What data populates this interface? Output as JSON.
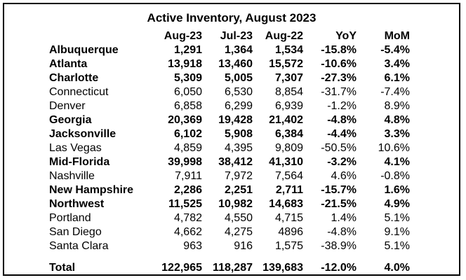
{
  "chart_data": {
    "type": "table",
    "title": "Active Inventory, August 2023",
    "columns": [
      "Aug-23",
      "Jul-23",
      "Aug-22",
      "YoY",
      "MoM"
    ],
    "rows": [
      {
        "name": "Albuquerque",
        "bold": true,
        "values": [
          "1,291",
          "1,364",
          "1,534",
          "-15.8%",
          "-5.4%"
        ]
      },
      {
        "name": "Atlanta",
        "bold": true,
        "values": [
          "13,918",
          "13,460",
          "15,572",
          "-10.6%",
          "3.4%"
        ]
      },
      {
        "name": "Charlotte",
        "bold": true,
        "values": [
          "5,309",
          "5,005",
          "7,307",
          "-27.3%",
          "6.1%"
        ]
      },
      {
        "name": "Connecticut",
        "bold": false,
        "values": [
          "6,050",
          "6,530",
          "8,854",
          "-31.7%",
          "-7.4%"
        ]
      },
      {
        "name": "Denver",
        "bold": false,
        "values": [
          "6,858",
          "6,299",
          "6,939",
          "-1.2%",
          "8.9%"
        ]
      },
      {
        "name": "Georgia",
        "bold": true,
        "values": [
          "20,369",
          "19,428",
          "21,402",
          "-4.8%",
          "4.8%"
        ]
      },
      {
        "name": "Jacksonville",
        "bold": true,
        "values": [
          "6,102",
          "5,908",
          "6,384",
          "-4.4%",
          "3.3%"
        ]
      },
      {
        "name": "Las Vegas",
        "bold": false,
        "values": [
          "4,859",
          "4,395",
          "9,809",
          "-50.5%",
          "10.6%"
        ]
      },
      {
        "name": "Mid-Florida",
        "bold": true,
        "values": [
          "39,998",
          "38,412",
          "41,310",
          "-3.2%",
          "4.1%"
        ]
      },
      {
        "name": "Nashville",
        "bold": false,
        "values": [
          "7,911",
          "7,972",
          "7,564",
          "4.6%",
          "-0.8%"
        ]
      },
      {
        "name": "New Hampshire",
        "bold": true,
        "values": [
          "2,286",
          "2,251",
          "2,711",
          "-15.7%",
          "1.6%"
        ]
      },
      {
        "name": "Northwest",
        "bold": true,
        "values": [
          "11,525",
          "10,982",
          "14,683",
          "-21.5%",
          "4.9%"
        ]
      },
      {
        "name": "Portland",
        "bold": false,
        "values": [
          "4,782",
          "4,550",
          "4,715",
          "1.4%",
          "5.1%"
        ]
      },
      {
        "name": "San Diego",
        "bold": false,
        "values": [
          "4,662",
          "4,275",
          "4896",
          "-4.8%",
          "9.1%"
        ]
      },
      {
        "name": "Santa Clara",
        "bold": false,
        "values": [
          "963",
          "916",
          "1,575",
          "-38.9%",
          "5.1%"
        ]
      }
    ],
    "total": {
      "name": "Total",
      "values": [
        "122,965",
        "118,287",
        "139,683",
        "-12.0%",
        "4.0%"
      ]
    }
  }
}
